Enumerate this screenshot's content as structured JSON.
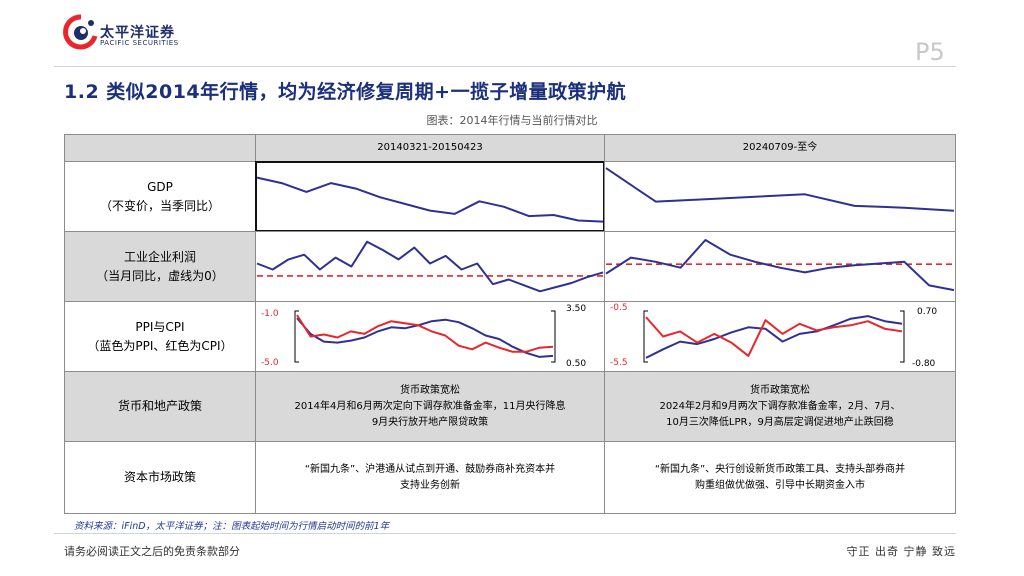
{
  "header": {
    "logo_cn": "太平洋证券",
    "logo_en": "PACIFIC SECURITIES",
    "page_number": "P5"
  },
  "title": "1.2 类似2014年行情，均为经济修复周期+一揽子增量政策护航",
  "subtitle": "图表：2014年行情与当前行情对比",
  "table": {
    "col_headers": [
      "20140321-20150423",
      "20240709-至今"
    ],
    "rows": [
      {
        "label_line1": "GDP",
        "label_line2": "（不变价，当季同比）"
      },
      {
        "label_line1": "工业企业利润",
        "label_line2": "（当月同比，虚线为0）"
      },
      {
        "label_line1": "PPI与CPI",
        "label_line2": "（蓝色为PPI、红色为CPI）"
      },
      {
        "label_line1": "货币和地产政策"
      },
      {
        "label_line1": "资本市场政策"
      }
    ],
    "monetary_2014": {
      "line1": "货币政策宽松",
      "line2": "2014年4月和6月两次定向下调存款准备金率，11月央行降息",
      "line3": "9月央行放开地产限贷政策"
    },
    "monetary_2024": {
      "line1": "货币政策宽松",
      "line2": "2024年2月和9月两次下调存款准备金率，2月、7月、",
      "line3": "10月三次降低LPR，9月高层定调促进地产止跌回稳"
    },
    "capital_2014": {
      "line1": "“新国九条”、沪港通从试点到开通、鼓励券商补充资本并",
      "line2": "支持业务创新"
    },
    "capital_2024": {
      "line1": "“新国九条”、央行创设新货币政策工具、支持头部券商并",
      "line2": "购重组做优做强、引导中长期资金入市"
    }
  },
  "ppi_axis_2014": {
    "left_top": "-1.0",
    "left_bottom": "-5.0",
    "right_top": "3.50",
    "right_bottom": "0.50"
  },
  "ppi_axis_2024": {
    "left_top": "-0.5",
    "left_bottom": "-5.5",
    "right_top": "0.70",
    "right_bottom": "-0.80"
  },
  "source": "资料来源：iFinD，太平洋证券；注：图表起始时间为行情启动时间的前1年",
  "footer": {
    "left": "请务必阅读正文之后的免责条款部分",
    "right": "守正 出奇 宁静 致远"
  },
  "colors": {
    "title": "#1b2f7a",
    "series_blue": "#2e3192",
    "series_red": "#e8262b",
    "cell_grey": "#d9d9d9"
  },
  "chart_data": [
    {
      "type": "line",
      "panel": "GDP 20140321-20150423",
      "ylim": [
        0,
        1
      ],
      "series": [
        {
          "values": [
            0.88,
            0.78,
            0.62,
            0.78,
            0.68,
            0.52,
            0.4,
            0.28,
            0.22,
            0.45,
            0.35,
            0.18,
            0.2,
            0.1,
            0.08
          ]
        }
      ]
    },
    {
      "type": "line",
      "panel": "GDP 20240709-至今",
      "ylim": [
        0,
        1
      ],
      "series": [
        {
          "values": [
            0.95,
            0.4,
            0.44,
            0.48,
            0.52,
            0.33,
            0.3,
            0.25
          ]
        }
      ]
    },
    {
      "type": "line",
      "panel": "工业企业利润 20140321-20150423",
      "ylim": [
        0,
        1
      ],
      "zero_line": 0.34,
      "series": [
        {
          "values": [
            0.55,
            0.45,
            0.62,
            0.7,
            0.45,
            0.65,
            0.5,
            0.92,
            0.78,
            0.62,
            0.82,
            0.55,
            0.68,
            0.45,
            0.55,
            0.2,
            0.28,
            0.18,
            0.08,
            0.15,
            0.22,
            0.32,
            0.4
          ]
        }
      ]
    },
    {
      "type": "line",
      "panel": "工业企业利润 20240709-至今",
      "ylim": [
        0,
        1
      ],
      "zero_line": 0.54,
      "series": [
        {
          "values": [
            0.38,
            0.65,
            0.58,
            0.48,
            0.95,
            0.7,
            0.58,
            0.48,
            0.4,
            0.48,
            0.52,
            0.55,
            0.58,
            0.18,
            0.1
          ]
        }
      ]
    },
    {
      "type": "line",
      "panel": "PPI与CPI 20140321-20150423",
      "ylim": [
        0,
        1
      ],
      "series": [
        {
          "values": [
            0.86,
            0.55,
            0.4,
            0.38,
            0.42,
            0.48,
            0.6,
            0.68,
            0.66,
            0.72,
            0.8,
            0.83,
            0.78,
            0.66,
            0.52,
            0.45,
            0.3,
            0.18,
            0.1,
            0.12
          ]
        },
        {
          "values": [
            0.92,
            0.5,
            0.54,
            0.48,
            0.6,
            0.55,
            0.7,
            0.8,
            0.76,
            0.72,
            0.6,
            0.52,
            0.32,
            0.25,
            0.38,
            0.28,
            0.2,
            0.2,
            0.28,
            0.3
          ]
        }
      ]
    },
    {
      "type": "line",
      "panel": "PPI与CPI 20240709-至今",
      "ylim": [
        0,
        1
      ],
      "series": [
        {
          "values": [
            0.08,
            0.25,
            0.4,
            0.35,
            0.45,
            0.58,
            0.68,
            0.65,
            0.4,
            0.55,
            0.6,
            0.72,
            0.85,
            0.9,
            0.8,
            0.75
          ]
        },
        {
          "values": [
            0.88,
            0.5,
            0.6,
            0.38,
            0.55,
            0.38,
            0.12,
            0.82,
            0.55,
            0.75,
            0.62,
            0.68,
            0.72,
            0.8,
            0.65,
            0.6
          ]
        }
      ]
    }
  ]
}
